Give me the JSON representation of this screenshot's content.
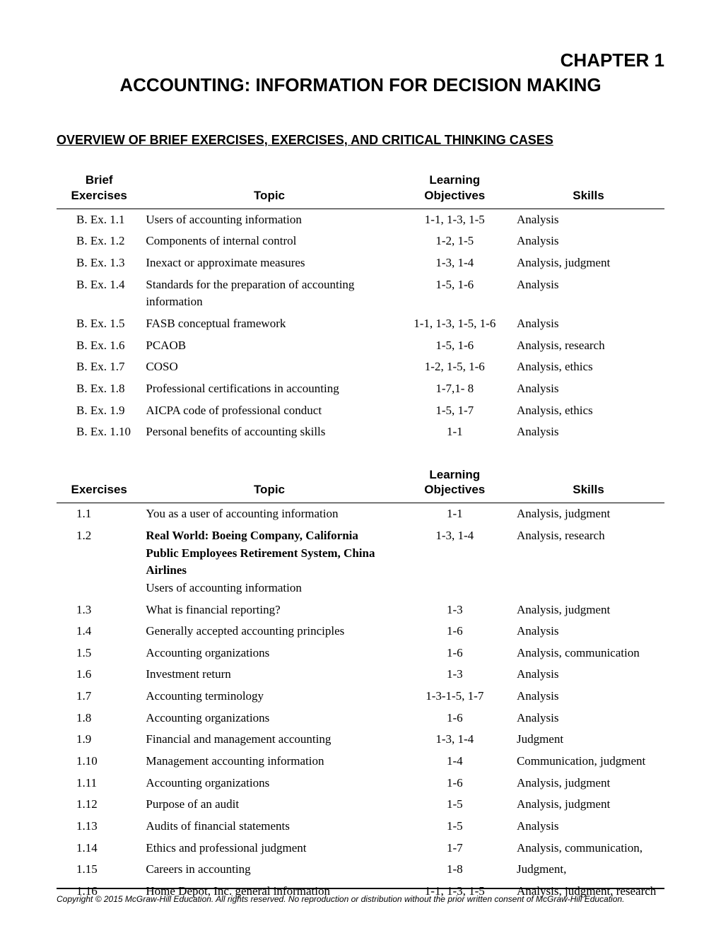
{
  "chapter_label": "CHAPTER 1",
  "chapter_title": "ACCOUNTING: INFORMATION FOR DECISION MAKING",
  "section_heading": "OVERVIEW OF BRIEF EXERCISES, EXERCISES, AND CRITICAL THINKING CASES",
  "table1": {
    "headers": {
      "ex": "Brief\nExercises",
      "topic": "Topic",
      "obj": "Learning\nObjectives",
      "skill": "Skills"
    },
    "col_widths_pct": [
      14,
      42,
      19,
      25
    ],
    "col_align": [
      "left",
      "left",
      "center",
      "left"
    ],
    "header_font": "Arial",
    "header_fontsize": 17,
    "body_fontsize": 17,
    "rows": [
      {
        "ex": "B. Ex. 1.1",
        "topic": "Users of accounting information",
        "obj": "1-1, 1-3, 1-5",
        "skill": "Analysis"
      },
      {
        "ex": "B. Ex. 1.2",
        "topic": "Components of internal control",
        "obj": "1-2, 1-5",
        "skill": "Analysis"
      },
      {
        "ex": "B. Ex. 1.3",
        "topic": "Inexact or approximate measures",
        "obj": "1-3, 1-4",
        "skill": "Analysis, judgment"
      },
      {
        "ex": "B. Ex. 1.4",
        "topic": "Standards for the preparation of accounting information",
        "obj": "1-5, 1-6",
        "skill": "Analysis"
      },
      {
        "ex": "B. Ex. 1.5",
        "topic": "FASB conceptual framework",
        "obj": "1-1, 1-3, 1-5, 1-6",
        "skill": "Analysis"
      },
      {
        "ex": "B. Ex. 1.6",
        "topic": "PCAOB",
        "obj": "1-5, 1-6",
        "skill": "Analysis, research"
      },
      {
        "ex": "B. Ex. 1.7",
        "topic": "COSO",
        "obj": "1-2, 1-5, 1-6",
        "skill": "Analysis, ethics"
      },
      {
        "ex": "B. Ex. 1.8",
        "topic": "Professional certifications in accounting",
        "obj": "1-7,1- 8",
        "skill": "Analysis"
      },
      {
        "ex": "B. Ex. 1.9",
        "topic": "AICPA code of professional conduct",
        "obj": "1-5, 1-7",
        "skill": "Analysis, ethics"
      },
      {
        "ex": "B. Ex. 1.10",
        "topic": "Personal benefits of accounting skills",
        "obj": "1-1",
        "skill": "Analysis"
      }
    ]
  },
  "table2": {
    "headers": {
      "ex": "Exercises",
      "topic": "Topic",
      "obj": "Learning\nObjectives",
      "skill": "Skills"
    },
    "rows": [
      {
        "ex": "1.1",
        "topic": "You as a user of accounting information",
        "obj": "1-1",
        "skill": "Analysis, judgment"
      },
      {
        "ex": "1.2",
        "topic_bold": "Real World: Boeing Company, California Public Employees Retirement System, China Airlines",
        "topic_plain": "Users of accounting information",
        "obj": "1-3, 1-4",
        "skill": "Analysis, research"
      },
      {
        "ex": "1.3",
        "topic": "What is financial reporting?",
        "obj": "1-3",
        "skill": "Analysis, judgment"
      },
      {
        "ex": "1.4",
        "topic": "Generally accepted accounting principles",
        "obj": "1-6",
        "skill": "Analysis"
      },
      {
        "ex": "1.5",
        "topic": "Accounting organizations",
        "obj": "1-6",
        "skill": "Analysis, communication"
      },
      {
        "ex": "1.6",
        "topic": "Investment return",
        "obj": "1-3",
        "skill": "Analysis"
      },
      {
        "ex": "1.7",
        "topic": "Accounting terminology",
        "obj": "1-3-1-5, 1-7",
        "skill": "Analysis"
      },
      {
        "ex": "1.8",
        "topic": "Accounting organizations",
        "obj": "1-6",
        "skill": "Analysis"
      },
      {
        "ex": "1.9",
        "topic": "Financial and management accounting",
        "obj": "1-3, 1-4",
        "skill": "Judgment"
      },
      {
        "ex": "1.10",
        "topic": "Management accounting information",
        "obj": "1-4",
        "skill": "Communication, judgment"
      },
      {
        "ex": "1.11",
        "topic": "Accounting organizations",
        "obj": "1-6",
        "skill": "Analysis, judgment"
      },
      {
        "ex": "1.12",
        "topic": "Purpose of an audit",
        "obj": "1-5",
        "skill": "Analysis, judgment"
      },
      {
        "ex": "1.13",
        "topic": "Audits of financial statements",
        "obj": "1-5",
        "skill": "Analysis"
      },
      {
        "ex": "1.14",
        "topic": "Ethics and professional judgment",
        "obj": "1-7",
        "skill": "Analysis, communication,"
      },
      {
        "ex": "1.15",
        "topic": "Careers in accounting",
        "obj": "1-8",
        "skill": "Judgment,"
      },
      {
        "ex": "1.16",
        "topic": "Home Depot, Inc. general information",
        "obj": "1-1, 1-3, 1-5",
        "skill": "Analysis, judgment, research"
      }
    ]
  },
  "copyright": "Copyright © 2015 McGraw-Hill Education.  All rights reserved. No reproduction or distribution without the prior written consent of McGraw-Hill Education."
}
